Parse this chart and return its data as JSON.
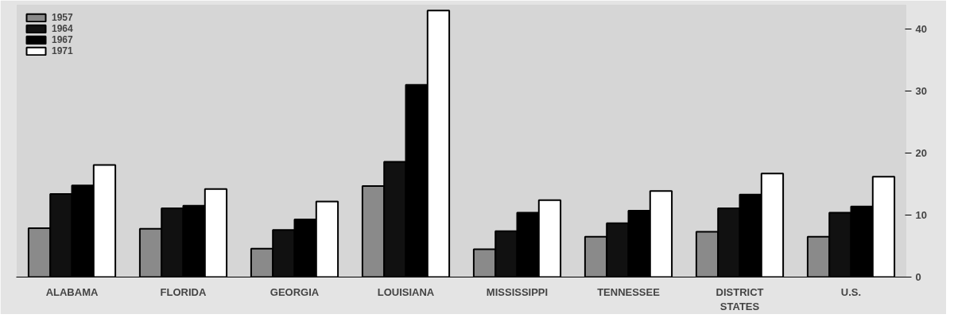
{
  "chart_data": {
    "type": "bar",
    "categories": [
      "ALABAMA",
      "FLORIDA",
      "GEORGIA",
      "LOUISIANA",
      "MISSISSIPPI",
      "TENNESSEE",
      "DISTRICT\nSTATES",
      "U.S."
    ],
    "series": [
      {
        "name": "1957",
        "color": "#8a8a8a",
        "values": [
          7.9,
          7.8,
          4.6,
          14.7,
          4.5,
          6.5,
          7.3,
          6.5
        ]
      },
      {
        "name": "1964",
        "color": "#111111",
        "values": [
          13.4,
          11.1,
          7.6,
          18.6,
          7.4,
          8.7,
          11.1,
          10.4
        ]
      },
      {
        "name": "1967",
        "color": "#000000",
        "values": [
          14.8,
          11.5,
          9.3,
          31,
          10.4,
          10.7,
          13.3,
          11.4
        ]
      },
      {
        "name": "1971",
        "color": "#ffffff",
        "values": [
          18.1,
          14.2,
          12.2,
          43,
          12.4,
          13.9,
          16.7,
          16.2
        ]
      }
    ],
    "ylim": [
      0,
      44
    ],
    "yticks": [
      0,
      10,
      20,
      30,
      40
    ],
    "grid": false,
    "legend": "top left"
  }
}
